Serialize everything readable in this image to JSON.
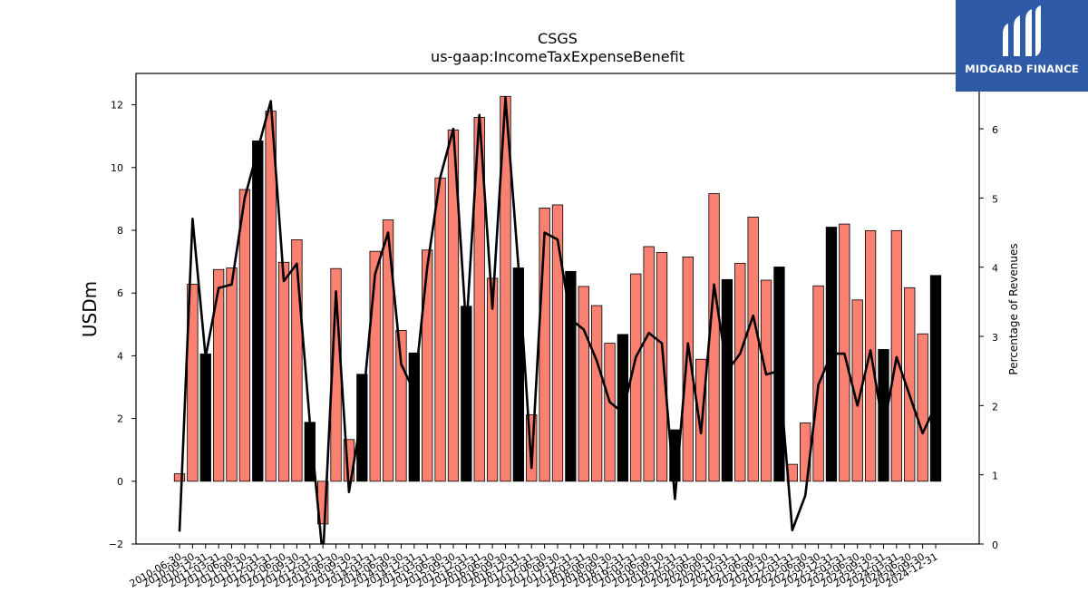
{
  "brand": {
    "name": "MIDGARD FINANCE",
    "bg_color": "#2f5aa8"
  },
  "chart_data": {
    "type": "bar",
    "title": "CSGS",
    "subtitle": "us-gaap:IncomeTaxExpenseBenefit",
    "ylabel": "USDm",
    "ylabel_right": "Percentage of Revenues",
    "ylim": [
      -2,
      13
    ],
    "ylim_right": [
      0,
      6.8
    ],
    "yticks": [
      -2,
      0,
      2,
      4,
      6,
      8,
      10,
      12
    ],
    "yticks_right": [
      0,
      1,
      2,
      3,
      4,
      5,
      6
    ],
    "bar_color": "#fa8072",
    "highlight_color": "#000000",
    "line_color": "#000000",
    "categories": [
      "2010-06-30",
      "2010-09-30",
      "2010-12-31",
      "2011-03-31",
      "2011-06-30",
      "2011-09-30",
      "2011-12-31",
      "2012-03-31",
      "2012-06-30",
      "2012-09-30",
      "2012-12-31",
      "2013-03-31",
      "2013-06-30",
      "2013-09-30",
      "2013-12-31",
      "2014-03-31",
      "2014-06-30",
      "2014-09-30",
      "2014-12-31",
      "2015-03-31",
      "2015-06-30",
      "2015-09-30",
      "2015-12-31",
      "2016-03-31",
      "2016-06-30",
      "2016-09-30",
      "2016-12-31",
      "2017-03-31",
      "2017-06-30",
      "2017-09-30",
      "2017-12-31",
      "2018-03-31",
      "2018-06-30",
      "2018-09-30",
      "2018-12-31",
      "2019-03-31",
      "2019-06-30",
      "2019-09-30",
      "2019-12-31",
      "2020-03-31",
      "2020-06-30",
      "2020-09-30",
      "2020-12-31",
      "2021-03-31",
      "2021-06-30",
      "2021-09-30",
      "2021-12-31",
      "2022-03-31",
      "2022-06-30",
      "2022-09-30",
      "2022-12-31",
      "2023-03-31",
      "2023-06-30",
      "2023-09-30",
      "2023-12-31",
      "2024-03-31",
      "2024-06-30",
      "2024-09-30",
      "2024-12-31"
    ],
    "values": [
      0.24,
      6.28,
      4.06,
      6.75,
      6.8,
      9.3,
      10.85,
      11.8,
      6.98,
      7.7,
      1.88,
      -1.36,
      6.78,
      1.33,
      3.41,
      7.33,
      8.33,
      4.81,
      4.09,
      7.37,
      9.67,
      11.2,
      5.58,
      11.6,
      6.47,
      12.27,
      6.8,
      2.12,
      8.71,
      8.81,
      6.69,
      6.21,
      5.6,
      4.4,
      4.68,
      6.61,
      7.48,
      7.29,
      1.64,
      7.15,
      3.89,
      9.17,
      6.43,
      6.95,
      8.42,
      6.41,
      6.83,
      0.54,
      1.86,
      6.23,
      8.1,
      8.2,
      5.78,
      7.99,
      4.2,
      7.99,
      6.17,
      4.7,
      6.56
    ],
    "highlighted": [
      false,
      false,
      true,
      false,
      false,
      false,
      true,
      false,
      false,
      false,
      true,
      false,
      false,
      false,
      true,
      false,
      false,
      false,
      true,
      false,
      false,
      false,
      true,
      false,
      false,
      false,
      true,
      false,
      false,
      false,
      true,
      false,
      false,
      false,
      true,
      false,
      false,
      false,
      true,
      false,
      false,
      false,
      true,
      false,
      false,
      false,
      true,
      false,
      false,
      false,
      true,
      false,
      false,
      false,
      true,
      false,
      false,
      false,
      true
    ],
    "percent_of_revenues": [
      0.18,
      4.7,
      2.7,
      3.7,
      3.75,
      5.0,
      5.7,
      6.4,
      3.8,
      4.05,
      1.75,
      -0.2,
      3.65,
      0.75,
      1.9,
      3.9,
      4.5,
      2.6,
      2.2,
      4.0,
      5.3,
      6.0,
      3.1,
      6.2,
      3.4,
      6.45,
      4.0,
      1.1,
      4.5,
      4.4,
      3.25,
      3.1,
      2.65,
      2.05,
      1.9,
      2.7,
      3.05,
      2.9,
      0.65,
      2.9,
      1.6,
      3.75,
      2.5,
      2.75,
      3.3,
      2.45,
      2.5,
      0.2,
      0.7,
      2.3,
      2.75,
      2.75,
      2.0,
      2.8,
      1.65,
      2.7,
      2.15,
      1.6,
      2.0
    ]
  }
}
